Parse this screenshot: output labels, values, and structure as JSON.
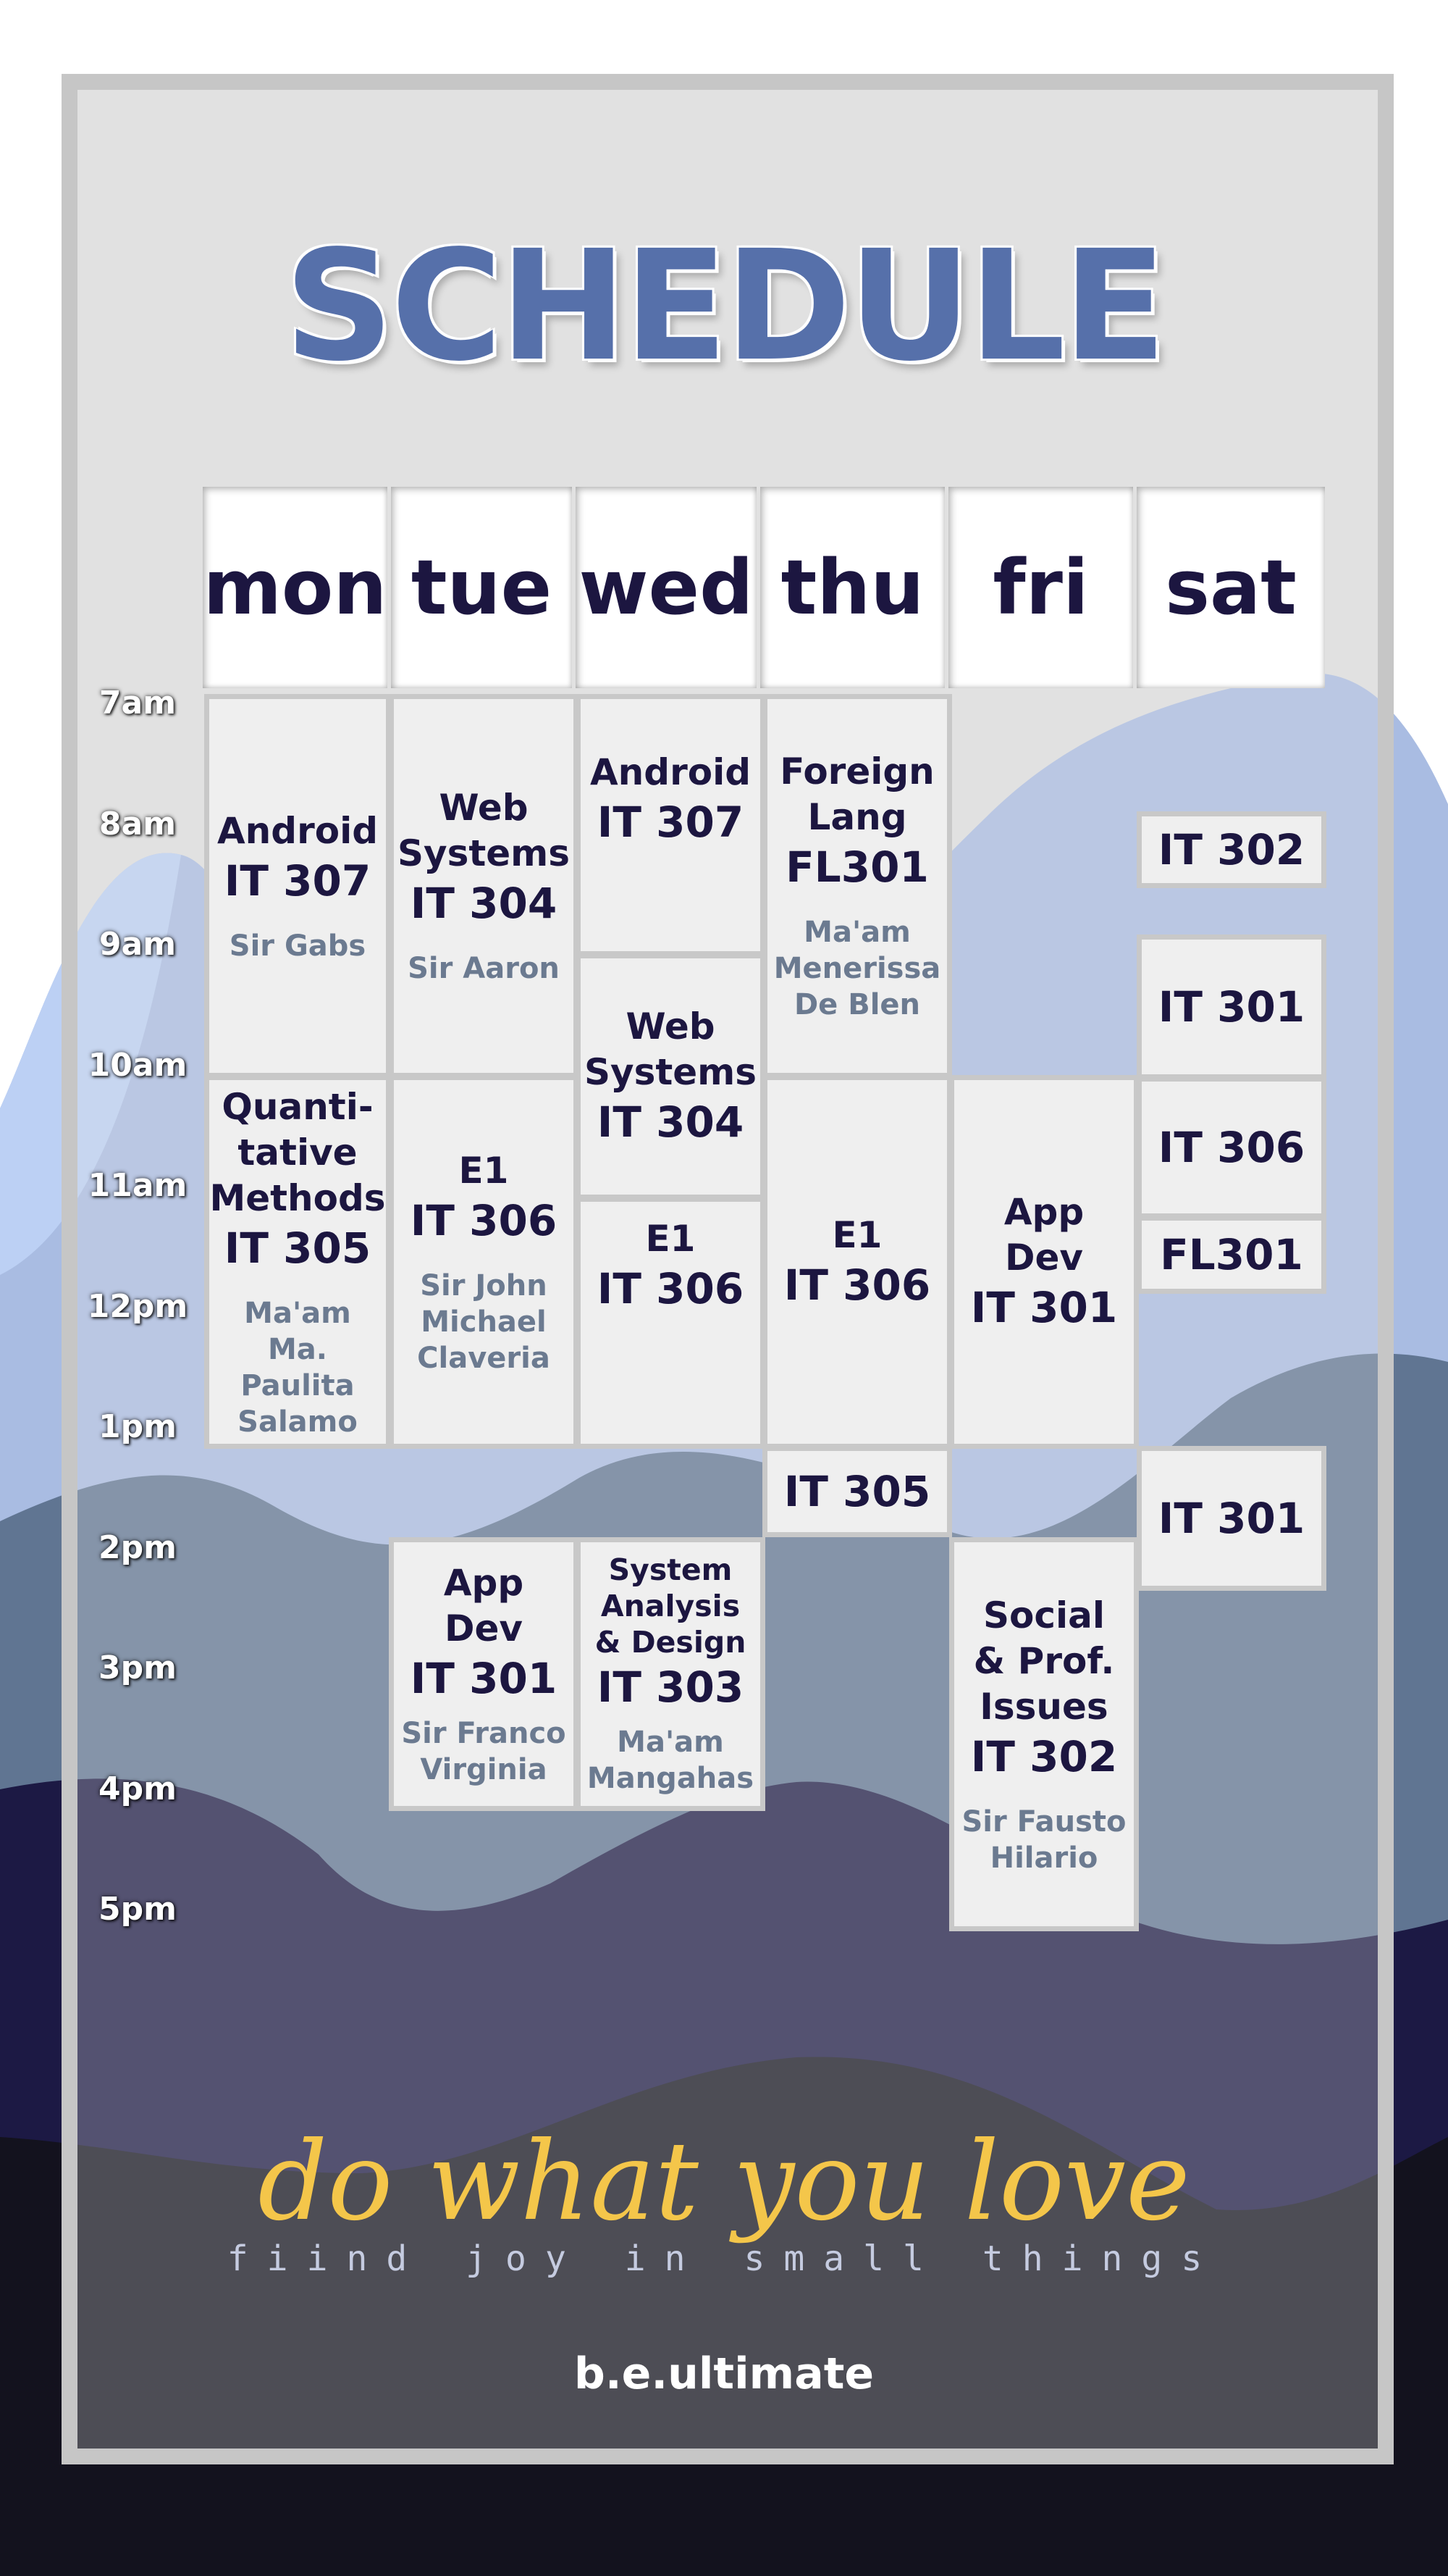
{
  "title": "SCHEDULE",
  "days": [
    "mon",
    "tue",
    "wed",
    "thu",
    "fri",
    "sat"
  ],
  "times": [
    "7am",
    "8am",
    "9am",
    "10am",
    "11am",
    "12pm",
    "1pm",
    "2pm",
    "3pm",
    "4pm",
    "5pm"
  ],
  "classes": {
    "mon_android": {
      "subject": "Android",
      "code": "IT 307",
      "prof": "Sir Gabs"
    },
    "mon_quant": {
      "subject_lines": [
        "Quanti-",
        "tative",
        "Methods"
      ],
      "code": "IT 305",
      "prof_lines": [
        "Ma'am",
        "Ma. Paulita",
        "Salamo"
      ]
    },
    "tue_web": {
      "subject_lines": [
        "Web",
        "Systems"
      ],
      "code": "IT 304",
      "prof": "Sir Aaron"
    },
    "tue_e1": {
      "subject": "E1",
      "code": "IT 306",
      "prof_lines": [
        "Sir John",
        "Michael",
        "Claveria"
      ]
    },
    "tue_appdev": {
      "subject_lines": [
        "App",
        "Dev"
      ],
      "code": "IT 301",
      "prof_lines": [
        "Sir Franco",
        "Virginia"
      ]
    },
    "wed_android": {
      "subject": "Android",
      "code": "IT 307"
    },
    "wed_web": {
      "subject_lines": [
        "Web",
        "Systems"
      ],
      "code": "IT 304"
    },
    "wed_e1": {
      "subject": "E1",
      "code": "IT 306"
    },
    "wed_sad": {
      "subject_lines": [
        "System",
        "Analysis",
        "& Design"
      ],
      "code": "IT 303",
      "prof_lines": [
        "Ma'am",
        "Mangahas"
      ]
    },
    "thu_foreign": {
      "subject_lines": [
        "Foreign",
        "Lang"
      ],
      "code": "FL301",
      "prof_lines": [
        "Ma'am",
        "Menerissa",
        "De Blen"
      ]
    },
    "thu_e1": {
      "subject": "E1",
      "code": "IT 306"
    },
    "thu_it305": {
      "code": "IT 305"
    },
    "fri_appdev": {
      "subject_lines": [
        "App",
        "Dev"
      ],
      "code": "IT 301"
    },
    "fri_social": {
      "subject_lines": [
        "Social",
        "& Prof.",
        "Issues"
      ],
      "code": "IT 302",
      "prof_lines": [
        "Sir Fausto",
        "Hilario"
      ]
    },
    "sat_it302": {
      "code": "IT 302"
    },
    "sat_it301a": {
      "code": "IT 301"
    },
    "sat_it306": {
      "code": "IT 306"
    },
    "sat_fl301": {
      "code": "FL301"
    },
    "sat_it301b": {
      "code": "IT 301"
    }
  },
  "quote": "do what you love",
  "tagline": "fiind joy in small things",
  "brand": "b.e.ultimate",
  "colors": {
    "title": "#5670aa",
    "day_text": "#1c1640",
    "prof_text": "#6b7a90",
    "quote": "#f4c64a",
    "wave_light": "#a9bce2",
    "wave_mid": "#607592",
    "wave_dark": "#1c1944",
    "wave_darkest": "#13121e"
  }
}
